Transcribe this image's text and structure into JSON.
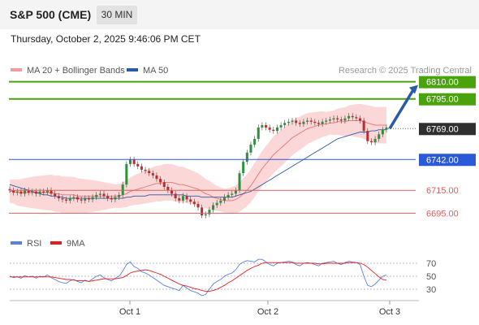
{
  "header": {
    "symbol": "S&P 500 (CME)",
    "timeframe": "30 MIN"
  },
  "timestamp": "Thursday, October 2, 2025 9:46:06 PM CET",
  "credit": "Research © 2025 Trading Central",
  "colors": {
    "candle_up": "#2f8f3f",
    "candle_down": "#c62828",
    "bollinger": "#f9c9c9",
    "ma20": "#e57373",
    "ma50": "#2b5aa8",
    "green_level": "#4aa30c",
    "blue_level": "#2b5ad8",
    "red_level": "#d86060",
    "rsi": "#5c7fe0",
    "rsi_ma": "#e02020"
  },
  "chart_data": [
    {
      "type": "candlestick",
      "legend": [
        "MA 20 + Bollinger Bands",
        "MA 50"
      ],
      "ylim": [
        6686,
        6814
      ],
      "x_ticks": [
        "Oct 1",
        "Oct 2",
        "Oct 3"
      ],
      "current_price": "6769.00",
      "levels": [
        {
          "label": "6810.00",
          "value": 6810,
          "kind": "green"
        },
        {
          "label": "6795.00",
          "value": 6795,
          "kind": "green"
        },
        {
          "label": "6742.00",
          "value": 6742,
          "kind": "blue"
        },
        {
          "label": "6715.00",
          "value": 6715,
          "kind": "red"
        },
        {
          "label": "6695.00",
          "value": 6695,
          "kind": "red"
        }
      ],
      "target_arrow": {
        "from": 6769,
        "to": 6810
      },
      "close_series": [
        6715,
        6713,
        6714,
        6712,
        6715,
        6713,
        6714,
        6712,
        6714,
        6713,
        6715,
        6712,
        6710,
        6708,
        6707,
        6706,
        6708,
        6709,
        6707,
        6706,
        6708,
        6707,
        6709,
        6711,
        6712,
        6710,
        6708,
        6707,
        6709,
        6711,
        6720,
        6738,
        6742,
        6738,
        6736,
        6733,
        6732,
        6730,
        6728,
        6725,
        6722,
        6718,
        6715,
        6712,
        6708,
        6706,
        6710,
        6707,
        6705,
        6703,
        6700,
        6693,
        6694,
        6698,
        6702,
        6704,
        6706,
        6709,
        6711,
        6712,
        6715,
        6730,
        6740,
        6748,
        6755,
        6760,
        6770,
        6772,
        6770,
        6768,
        6767,
        6770,
        6772,
        6774,
        6775,
        6776,
        6774,
        6773,
        6775,
        6776,
        6775,
        6774,
        6773,
        6775,
        6776,
        6777,
        6778,
        6777,
        6776,
        6778,
        6780,
        6779,
        6778,
        6776,
        6767,
        6758,
        6757,
        6760,
        6764,
        6768,
        6770
      ],
      "ma20_series": [
        6714,
        6714,
        6713,
        6713,
        6713,
        6713,
        6713,
        6713,
        6713,
        6713,
        6713,
        6713,
        6712,
        6712,
        6711,
        6711,
        6711,
        6711,
        6710,
        6710,
        6710,
        6710,
        6710,
        6710,
        6710,
        6710,
        6710,
        6710,
        6710,
        6710,
        6711,
        6712,
        6714,
        6715,
        6716,
        6717,
        6718,
        6719,
        6720,
        6721,
        6721,
        6722,
        6722,
        6722,
        6721,
        6720,
        6720,
        6719,
        6718,
        6717,
        6716,
        6714,
        6712,
        6711,
        6709,
        6708,
        6707,
        6706,
        6706,
        6706,
        6707,
        6709,
        6712,
        6715,
        6719,
        6724,
        6729,
        6734,
        6738,
        6742,
        6746,
        6749,
        6752,
        6755,
        6758,
        6761,
        6763,
        6765,
        6767,
        6769,
        6770,
        6771,
        6772,
        6773,
        6773,
        6774,
        6774,
        6775,
        6775,
        6775,
        6776,
        6776,
        6776,
        6776,
        6775,
        6774,
        6773,
        6772,
        6772,
        6772,
        6772
      ],
      "ma50_series": [
        6720,
        6719,
        6718,
        6717,
        6716,
        6715,
        6714,
        6713,
        6712,
        6711,
        6711,
        6710,
        6710,
        6709,
        6709,
        6708,
        6708,
        6708,
        6708,
        6708,
        6708,
        6708,
        6708,
        6708,
        6708,
        6708,
        6708,
        6708,
        6708,
        6708,
        6708,
        6709,
        6709,
        6710,
        6710,
        6710,
        6710,
        6711,
        6711,
        6711,
        6711,
        6711,
        6711,
        6711,
        6711,
        6711,
        6711,
        6710,
        6710,
        6710,
        6710,
        6709,
        6709,
        6709,
        6709,
        6709,
        6709,
        6709,
        6709,
        6709,
        6710,
        6711,
        6712,
        6713,
        6714,
        6716,
        6718,
        6720,
        6722,
        6724,
        6726,
        6728,
        6730,
        6732,
        6734,
        6736,
        6738,
        6740,
        6742,
        6744,
        6746,
        6748,
        6750,
        6752,
        6754,
        6756,
        6758,
        6760,
        6761,
        6762,
        6763,
        6764,
        6765,
        6766,
        6766,
        6766,
        6767,
        6767,
        6768,
        6768,
        6768
      ]
    },
    {
      "type": "line",
      "legend": [
        "RSI",
        "9MA"
      ],
      "ylim": [
        20,
        80
      ],
      "y_ticks": [
        "70",
        "50",
        "30"
      ],
      "rsi_series": [
        50,
        48,
        49,
        47,
        51,
        49,
        50,
        47,
        50,
        49,
        52,
        48,
        45,
        42,
        40,
        39,
        43,
        45,
        42,
        40,
        44,
        42,
        46,
        50,
        52,
        48,
        45,
        43,
        47,
        50,
        58,
        68,
        72,
        65,
        62,
        57,
        55,
        52,
        48,
        44,
        40,
        36,
        34,
        32,
        30,
        28,
        36,
        32,
        28,
        26,
        24,
        20,
        22,
        30,
        38,
        42,
        45,
        50,
        53,
        55,
        60,
        68,
        72,
        74,
        73,
        72,
        76,
        76,
        72,
        68,
        66,
        70,
        71,
        72,
        73,
        72,
        68,
        66,
        70,
        71,
        70,
        68,
        66,
        70,
        71,
        72,
        73,
        70,
        68,
        71,
        73,
        72,
        71,
        68,
        50,
        36,
        34,
        38,
        44,
        50,
        52
      ],
      "rsi_ma_series": [
        49,
        49,
        49,
        49,
        49,
        49,
        49,
        49,
        49,
        49,
        49,
        49,
        48,
        47,
        46,
        45,
        45,
        44,
        43,
        43,
        43,
        42,
        43,
        44,
        45,
        46,
        46,
        46,
        46,
        47,
        48,
        51,
        55,
        57,
        58,
        59,
        60,
        59,
        57,
        55,
        53,
        50,
        47,
        44,
        41,
        38,
        36,
        35,
        33,
        31,
        30,
        28,
        27,
        27,
        28,
        30,
        33,
        36,
        40,
        43,
        47,
        51,
        55,
        59,
        62,
        65,
        67,
        70,
        71,
        71,
        71,
        71,
        71,
        71,
        71,
        71,
        70,
        70,
        70,
        70,
        70,
        70,
        69,
        69,
        70,
        70,
        70,
        70,
        70,
        70,
        71,
        71,
        71,
        70,
        68,
        64,
        59,
        54,
        49,
        45,
        44
      ]
    }
  ]
}
